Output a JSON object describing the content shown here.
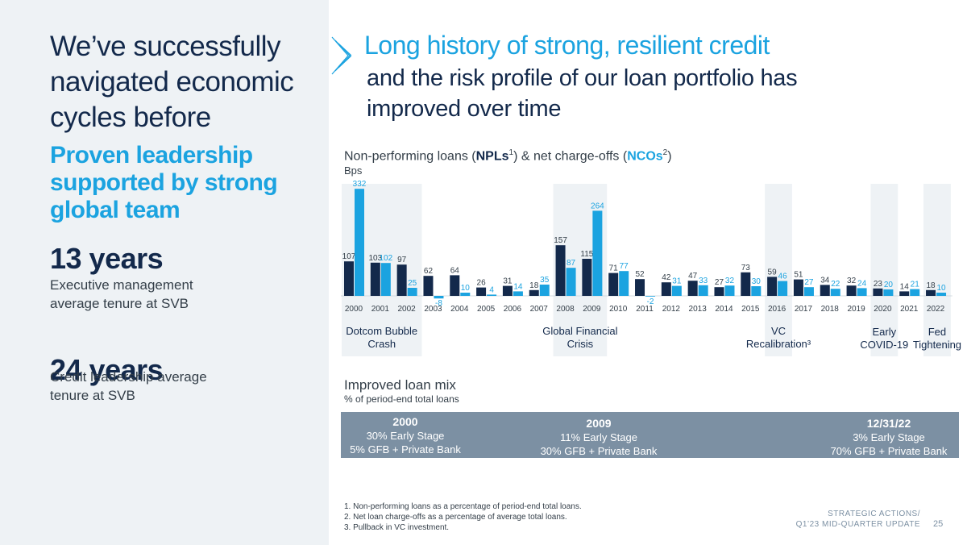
{
  "left": {
    "title": "We’ve successfully navigated economic cycles before",
    "lead": "Proven leadership supported by strong global team",
    "stat1_value": "13 years",
    "stat1_desc": "Executive management average tenure at SVB",
    "stat2_value": "24 years",
    "stat2_desc": "Credit leadership average tenure at SVB"
  },
  "right": {
    "headline": "Long history of strong, resilient credit",
    "subhead": "and the risk profile of our loan portfolio has improved over time"
  },
  "chart_title": {
    "prefix": "Non-performing loans (",
    "npl": "NPLs",
    "npl_sup": "1",
    "middle": ") & net charge-offs (",
    "nco": "NCOs",
    "nco_sup": "2",
    "suffix": ")"
  },
  "chart_unit": "Bps",
  "colors": {
    "npl": "#13294b",
    "nco": "#1ba3e0",
    "shade": "#eef2f5",
    "label": "#333e48"
  },
  "chart_data": {
    "type": "bar",
    "title": "Non-performing loans (NPLs) & net charge-offs (NCOs)",
    "ylabel": "Bps",
    "categories": [
      "2000",
      "2001",
      "2002",
      "2003",
      "2004",
      "2005",
      "2006",
      "2007",
      "2008",
      "2009",
      "2010",
      "2011",
      "2012",
      "2013",
      "2014",
      "2015",
      "2016",
      "2017",
      "2018",
      "2019",
      "2020",
      "2021",
      "2022"
    ],
    "series": [
      {
        "name": "NPLs",
        "values": [
          107,
          103,
          97,
          62,
          64,
          26,
          31,
          18,
          157,
          115,
          71,
          52,
          42,
          47,
          27,
          73,
          59,
          51,
          34,
          32,
          23,
          14,
          18
        ]
      },
      {
        "name": "NCOs",
        "values": [
          332,
          102,
          25,
          -8,
          10,
          4,
          14,
          35,
          87,
          264,
          77,
          -2,
          31,
          33,
          32,
          30,
          46,
          27,
          22,
          24,
          20,
          21,
          10
        ]
      }
    ],
    "ylim": [
      -10,
      340
    ],
    "shaded_periods": [
      {
        "from": "2000",
        "to": "2002",
        "label_line1": "Dotcom Bubble",
        "label_line2": "Crash"
      },
      {
        "from": "2008",
        "to": "2009",
        "label_line1": "Global Financial",
        "label_line2": "Crisis"
      },
      {
        "from": "2016",
        "to": "2016",
        "label_line1": "VC",
        "label_line2": "Recalibration³"
      },
      {
        "from": "2020",
        "to": "2020",
        "label_line1": "Early",
        "label_line2": "COVID-19"
      },
      {
        "from": "2022",
        "to": "2022",
        "label_line1": "Fed",
        "label_line2": "Tightening"
      }
    ]
  },
  "mix": {
    "title": "Improved loan mix",
    "subtitle": "% of period-end total loans",
    "cols": [
      {
        "year": "2000",
        "line1": "30% Early Stage",
        "line2": "5% GFB + Private Bank"
      },
      {
        "year": "2009",
        "line1": "11% Early Stage",
        "line2": "30% GFB + Private Bank"
      },
      {
        "year": "12/31/22",
        "line1": "3% Early Stage",
        "line2": "70% GFB + Private Bank"
      }
    ]
  },
  "footnotes": [
    "1.  Non-performing loans as a percentage of period-end total loans.",
    "2.  Net loan charge-offs as a percentage of average total loans.",
    "3.  Pullback in VC investment."
  ],
  "footer": {
    "line1": "STRATEGIC ACTIONS/",
    "line2": "Q1’23 MID-QUARTER UPDATE",
    "page": "25"
  }
}
